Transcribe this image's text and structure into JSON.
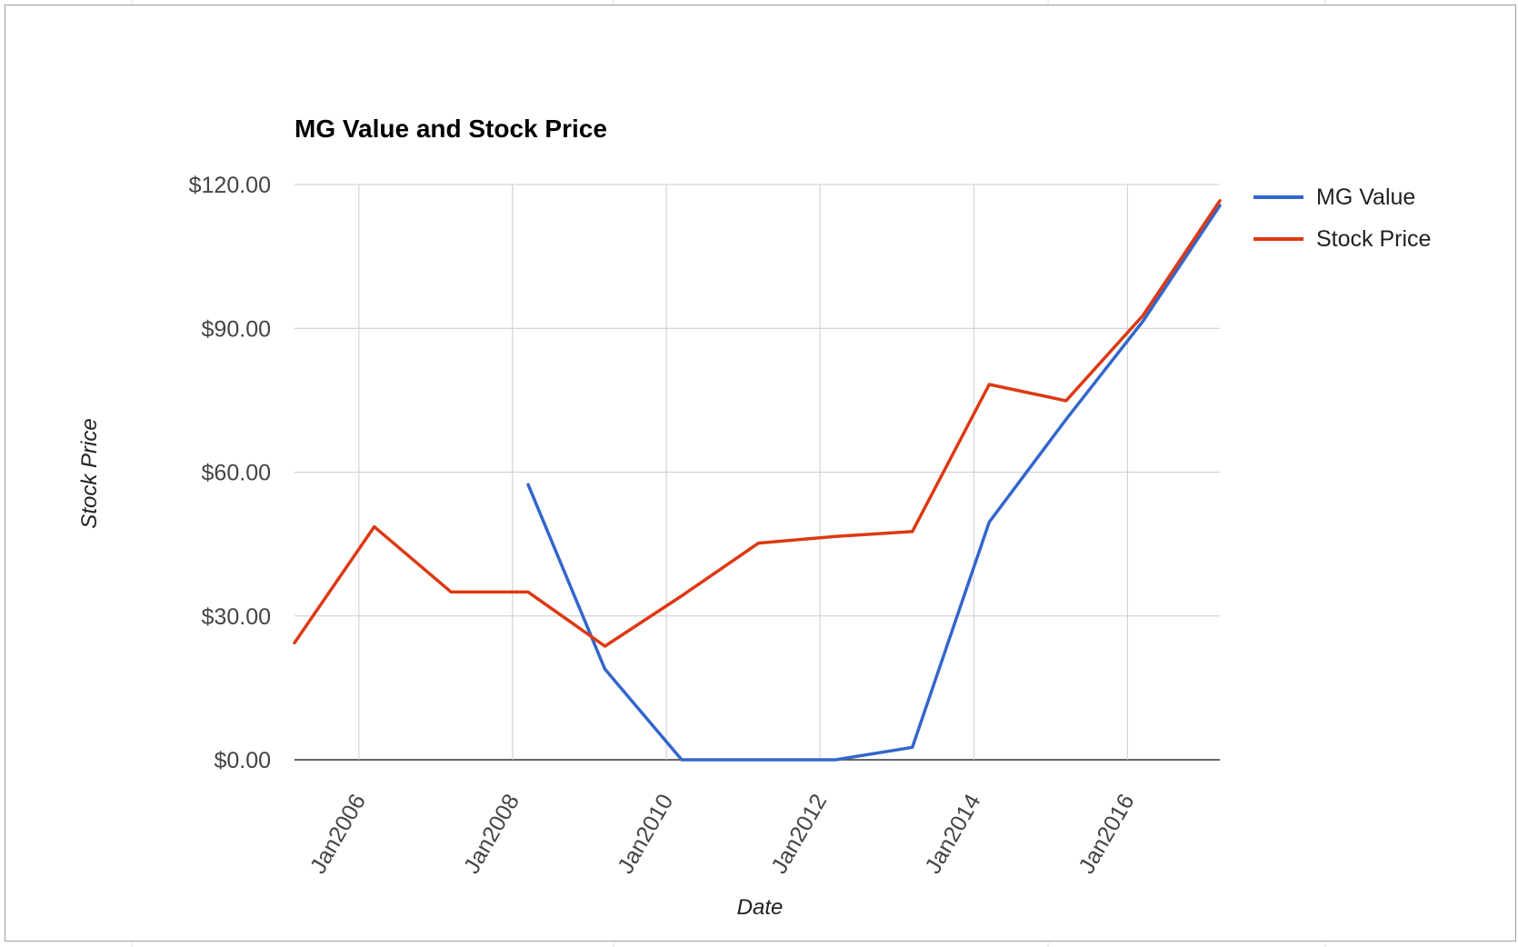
{
  "chart_data": {
    "type": "line",
    "title": "MG Value and Stock Price",
    "xlabel": "Date",
    "ylabel": "Stock Price",
    "x_ticks": [
      "Jan2006",
      "Jan2008",
      "Jan2010",
      "Jan2012",
      "Jan2014",
      "Jan2016"
    ],
    "xlim": [
      "2005-03-01",
      "2017-03-15"
    ],
    "y_ticks": [
      {
        "value": 0,
        "label": "$0.00"
      },
      {
        "value": 30,
        "label": "$30.00"
      },
      {
        "value": 60,
        "label": "$60.00"
      },
      {
        "value": 90,
        "label": "$90.00"
      },
      {
        "value": 120,
        "label": "$120.00"
      }
    ],
    "ylim": [
      0,
      120
    ],
    "grid": true,
    "legend_position": "right",
    "series": [
      {
        "name": "MG Value",
        "color": "#3366cc",
        "points": [
          {
            "x": "2008-03-15",
            "y": 57.4
          },
          {
            "x": "2009-03-15",
            "y": 18.9
          },
          {
            "x": "2010-03-15",
            "y": 0
          },
          {
            "x": "2011-03-15",
            "y": 0
          },
          {
            "x": "2012-03-15",
            "y": 0
          },
          {
            "x": "2013-03-15",
            "y": 2.6
          },
          {
            "x": "2014-03-15",
            "y": 49.6
          },
          {
            "x": "2015-03-15",
            "y": 71.0
          },
          {
            "x": "2016-03-15",
            "y": 91.5
          },
          {
            "x": "2017-03-15",
            "y": 115.6
          }
        ]
      },
      {
        "name": "Stock Price",
        "color": "#dc3912",
        "points": [
          {
            "x": "2005-03-01",
            "y": 24.4
          },
          {
            "x": "2006-03-15",
            "y": 48.6
          },
          {
            "x": "2007-03-15",
            "y": 35.0
          },
          {
            "x": "2008-03-15",
            "y": 35.0
          },
          {
            "x": "2009-03-15",
            "y": 23.7
          },
          {
            "x": "2010-03-15",
            "y": 34.2
          },
          {
            "x": "2011-03-15",
            "y": 45.2
          },
          {
            "x": "2012-03-15",
            "y": 46.6
          },
          {
            "x": "2013-03-15",
            "y": 47.6
          },
          {
            "x": "2014-03-15",
            "y": 78.3
          },
          {
            "x": "2015-03-15",
            "y": 74.9
          },
          {
            "x": "2016-03-15",
            "y": 92.7
          },
          {
            "x": "2017-03-15",
            "y": 116.6
          }
        ]
      }
    ]
  },
  "colors": {
    "grid": "#cccccc",
    "baseline": "#333333",
    "axis_text": "#444444",
    "title": "#000000",
    "legend_text": "#222222"
  }
}
